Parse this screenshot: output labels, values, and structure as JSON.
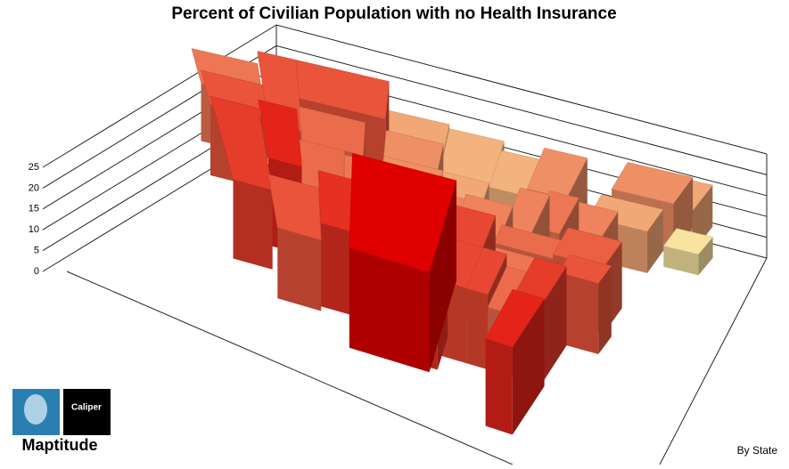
{
  "chart_data": {
    "type": "map3d",
    "title": "Percent of Civilian Population with no Health Insurance",
    "subtitle": "By State",
    "values": [
      14,
      17,
      17,
      17,
      10,
      19,
      21,
      15,
      15,
      12,
      9,
      9,
      12,
      10,
      12,
      14,
      13,
      13,
      17,
      20,
      13,
      15,
      14,
      13,
      10,
      12,
      10,
      18,
      14,
      24,
      18,
      18,
      15,
      19,
      16,
      17,
      20,
      21,
      5
    ],
    "ylim": [
      0,
      25
    ],
    "yticks": [
      0,
      5,
      10,
      15,
      20,
      25
    ],
    "colors": [
      "#f8e3a0",
      "#e00000"
    ],
    "logo": {
      "product": "Maptitude",
      "company": "Caliper"
    }
  }
}
